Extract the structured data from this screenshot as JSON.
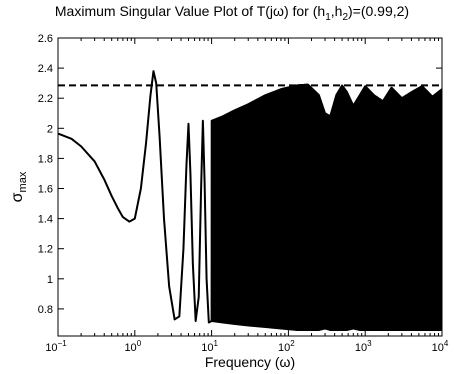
{
  "chart_data": {
    "type": "line",
    "title": {
      "prefix": "Maximum Singular Value Plot of T(j",
      "omega": "ω",
      "mid": ") for (h",
      "sub1": "1",
      "comma": ",h",
      "sub2": "2",
      "suffix": ")=(0.99,2)"
    },
    "xlabel": {
      "text": "Frequency (",
      "omega": "ω",
      "close": ")"
    },
    "ylabel": {
      "sigma": "σ",
      "sub": "max"
    },
    "xscale": "log",
    "xlim": [
      0.1,
      10000
    ],
    "ylim": [
      0.62,
      2.6
    ],
    "x_ticks": [
      {
        "value": 0.1,
        "base": "10",
        "exp": "−1"
      },
      {
        "value": 1,
        "base": "10",
        "exp": "0"
      },
      {
        "value": 10,
        "base": "10",
        "exp": "1"
      },
      {
        "value": 100,
        "base": "10",
        "exp": "2"
      },
      {
        "value": 1000,
        "base": "10",
        "exp": "3"
      },
      {
        "value": 10000,
        "base": "10",
        "exp": "4"
      }
    ],
    "y_ticks": [
      {
        "value": 0.8,
        "label": "0.8"
      },
      {
        "value": 1.0,
        "label": "1"
      },
      {
        "value": 1.2,
        "label": "1.2"
      },
      {
        "value": 1.4,
        "label": "1.4"
      },
      {
        "value": 1.6,
        "label": "1.6"
      },
      {
        "value": 1.8,
        "label": "1.8"
      },
      {
        "value": 2.0,
        "label": "2"
      },
      {
        "value": 2.2,
        "label": "2.2"
      },
      {
        "value": 2.4,
        "label": "2.4"
      },
      {
        "value": 2.6,
        "label": "2.6"
      }
    ],
    "grid": false,
    "reference_line": {
      "style": "dashed",
      "y": 2.285
    },
    "series": [
      {
        "style": "solid",
        "color": "#000000",
        "points": [
          [
            0.1,
            1.965
          ],
          [
            0.15,
            1.93
          ],
          [
            0.2,
            1.88
          ],
          [
            0.3,
            1.78
          ],
          [
            0.4,
            1.66
          ],
          [
            0.5,
            1.55
          ],
          [
            0.6,
            1.47
          ],
          [
            0.7,
            1.41
          ],
          [
            0.85,
            1.38
          ],
          [
            1.0,
            1.4
          ],
          [
            1.2,
            1.6
          ],
          [
            1.4,
            1.9
          ],
          [
            1.6,
            2.22
          ],
          [
            1.75,
            2.38
          ],
          [
            1.9,
            2.3
          ],
          [
            2.1,
            1.95
          ],
          [
            2.4,
            1.4
          ],
          [
            2.8,
            0.95
          ],
          [
            3.3,
            0.73
          ],
          [
            3.8,
            0.75
          ],
          [
            4.3,
            1.2
          ],
          [
            4.7,
            1.75
          ],
          [
            5.0,
            2.03
          ],
          [
            5.3,
            1.7
          ],
          [
            5.7,
            1.1
          ],
          [
            6.2,
            0.72
          ],
          [
            6.8,
            0.88
          ],
          [
            7.3,
            1.6
          ],
          [
            7.7,
            2.05
          ],
          [
            8.1,
            1.65
          ],
          [
            8.6,
            1.0
          ],
          [
            9.2,
            0.71
          ]
        ],
        "envelope": [
          {
            "x": 10,
            "upper": 2.05,
            "lower": 0.72
          },
          {
            "x": 14,
            "upper": 2.08,
            "lower": 0.71
          },
          {
            "x": 20,
            "upper": 2.12,
            "lower": 0.7
          },
          {
            "x": 30,
            "upper": 2.16,
            "lower": 0.69
          },
          {
            "x": 50,
            "upper": 2.22,
            "lower": 0.68
          },
          {
            "x": 80,
            "upper": 2.26,
            "lower": 0.67
          },
          {
            "x": 130,
            "upper": 2.285,
            "lower": 0.66
          },
          {
            "x": 180,
            "upper": 2.29,
            "lower": 0.66
          },
          {
            "x": 250,
            "upper": 2.22,
            "lower": 0.66
          },
          {
            "x": 300,
            "upper": 2.1,
            "lower": 0.67
          },
          {
            "x": 350,
            "upper": 2.08,
            "lower": 0.66
          },
          {
            "x": 420,
            "upper": 2.22,
            "lower": 0.66
          },
          {
            "x": 500,
            "upper": 2.285,
            "lower": 0.66
          },
          {
            "x": 580,
            "upper": 2.24,
            "lower": 0.66
          },
          {
            "x": 700,
            "upper": 2.15,
            "lower": 0.67
          },
          {
            "x": 850,
            "upper": 2.22,
            "lower": 0.66
          },
          {
            "x": 1000,
            "upper": 2.28,
            "lower": 0.66
          },
          {
            "x": 1300,
            "upper": 2.22,
            "lower": 0.66
          },
          {
            "x": 1700,
            "upper": 2.18,
            "lower": 0.66
          },
          {
            "x": 2200,
            "upper": 2.27,
            "lower": 0.66
          },
          {
            "x": 3000,
            "upper": 2.2,
            "lower": 0.66
          },
          {
            "x": 4000,
            "upper": 2.24,
            "lower": 0.66
          },
          {
            "x": 5500,
            "upper": 2.28,
            "lower": 0.66
          },
          {
            "x": 7500,
            "upper": 2.21,
            "lower": 0.66
          },
          {
            "x": 10000,
            "upper": 2.26,
            "lower": 0.66
          }
        ]
      }
    ]
  }
}
